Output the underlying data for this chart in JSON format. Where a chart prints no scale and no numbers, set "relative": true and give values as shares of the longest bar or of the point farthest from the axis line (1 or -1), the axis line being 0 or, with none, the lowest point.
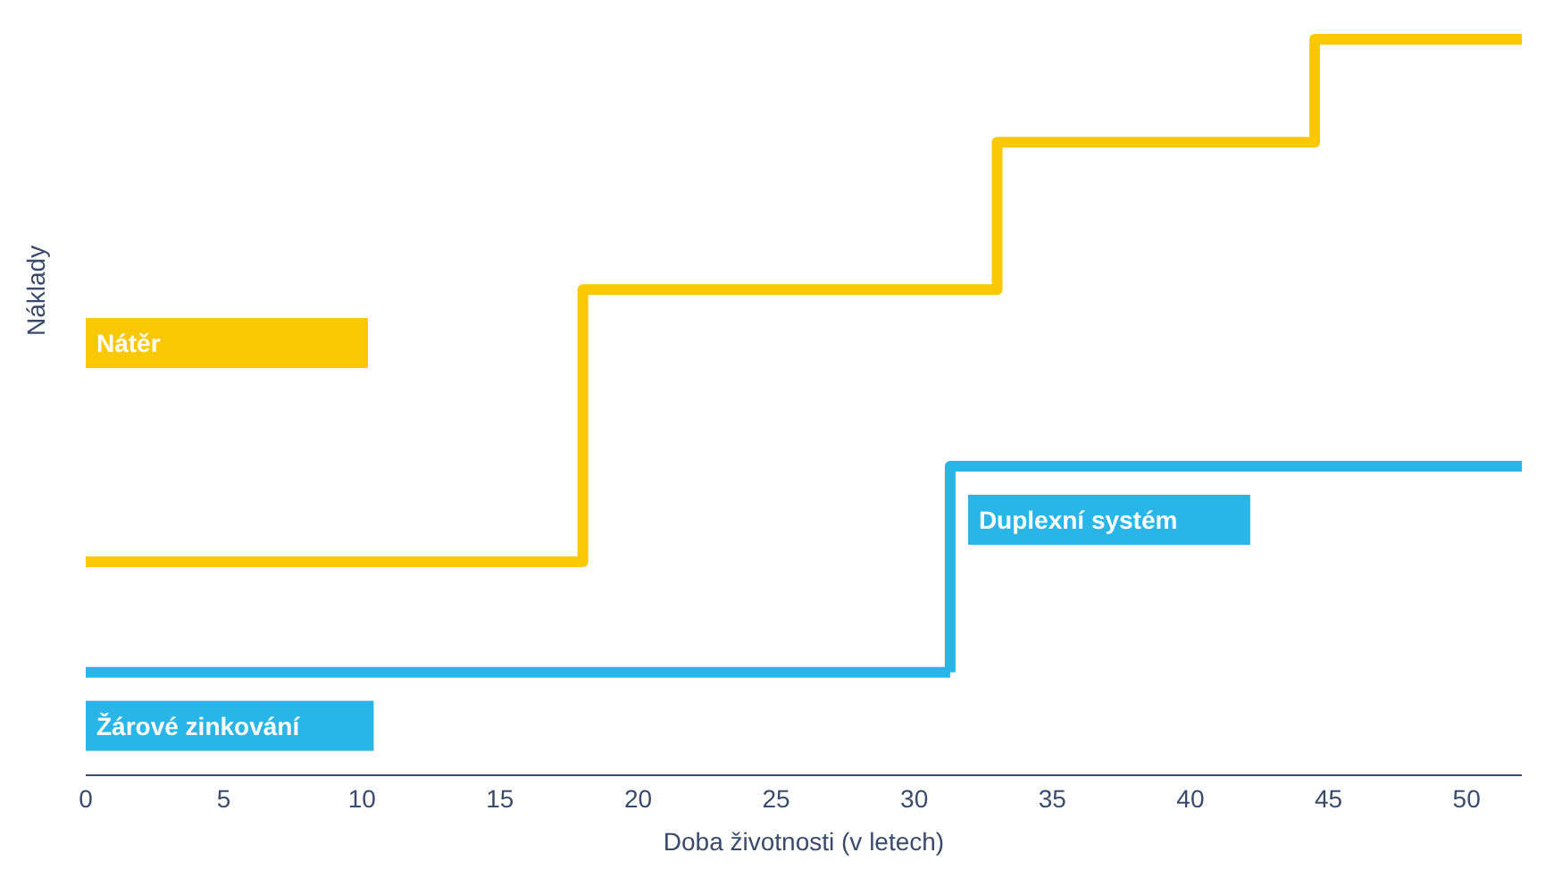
{
  "chart_data": {
    "type": "step",
    "relative": true,
    "xlabel": "Doba životnosti (v letech)",
    "ylabel": "Náklady",
    "xlim": [
      0,
      52
    ],
    "xticks": [
      0,
      5,
      10,
      15,
      20,
      25,
      30,
      35,
      40,
      45,
      50
    ],
    "series": [
      {
        "name": "Nátěr",
        "color": "#f9c800",
        "x": [
          0,
          18,
          33,
          44.5,
          52
        ],
        "values": [
          0.29,
          0.66,
          0.86,
          1,
          1
        ]
      },
      {
        "name": "Žárové zinkování",
        "color": "#29b5e8",
        "x": [
          0,
          31.3
        ],
        "values": [
          0.14,
          0.14
        ]
      },
      {
        "name": "Duplexní systém",
        "color": "#29b5e8",
        "x": [
          31.3,
          31.3,
          52
        ],
        "values": [
          0.14,
          0.42,
          0.42
        ]
      }
    ]
  }
}
